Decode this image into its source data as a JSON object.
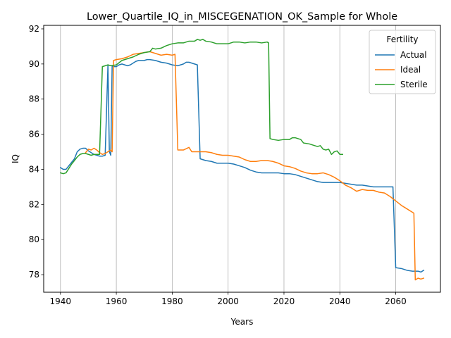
{
  "chart_data": {
    "type": "line",
    "title": "Lower_Quartile_IQ_in_MISCEGENATION_OK_Sample for Whole",
    "xlabel": "Years",
    "ylabel": "IQ",
    "xlim": [
      1934,
      2076
    ],
    "ylim": [
      77.0,
      92.2
    ],
    "xticks": [
      1940,
      1960,
      1980,
      2000,
      2020,
      2040,
      2060
    ],
    "yticks": [
      78,
      80,
      82,
      84,
      86,
      88,
      90,
      92
    ],
    "grid": "x-only",
    "legend": {
      "title": "Fertility",
      "placement": "top-right"
    },
    "series": [
      {
        "name": "Actual",
        "color": "#1f77b4",
        "points": [
          [
            1940,
            84.1
          ],
          [
            1941,
            84.0
          ],
          [
            1942,
            84.0
          ],
          [
            1943,
            84.2
          ],
          [
            1944,
            84.4
          ],
          [
            1945,
            84.6
          ],
          [
            1946,
            85.0
          ],
          [
            1947,
            85.15
          ],
          [
            1948,
            85.2
          ],
          [
            1949,
            85.2
          ],
          [
            1950,
            85.05
          ],
          [
            1951,
            84.95
          ],
          [
            1952,
            84.85
          ],
          [
            1953,
            84.8
          ],
          [
            1954,
            84.75
          ],
          [
            1955,
            84.75
          ],
          [
            1956,
            84.8
          ],
          [
            1957,
            89.95
          ],
          [
            1957.5,
            85.0
          ],
          [
            1958,
            84.8
          ],
          [
            1958.5,
            89.9
          ],
          [
            1959,
            89.85
          ],
          [
            1960,
            89.85
          ],
          [
            1961,
            89.95
          ],
          [
            1962,
            90.0
          ],
          [
            1963,
            89.95
          ],
          [
            1964,
            89.9
          ],
          [
            1965,
            89.95
          ],
          [
            1966,
            90.05
          ],
          [
            1967,
            90.15
          ],
          [
            1968,
            90.2
          ],
          [
            1970,
            90.2
          ],
          [
            1971,
            90.25
          ],
          [
            1972,
            90.25
          ],
          [
            1974,
            90.2
          ],
          [
            1976,
            90.1
          ],
          [
            1978,
            90.05
          ],
          [
            1980,
            89.95
          ],
          [
            1982,
            89.9
          ],
          [
            1984,
            90.0
          ],
          [
            1985,
            90.1
          ],
          [
            1986,
            90.1
          ],
          [
            1988,
            90.0
          ],
          [
            1989,
            89.95
          ],
          [
            1990,
            84.6
          ],
          [
            1992,
            84.5
          ],
          [
            1994,
            84.45
          ],
          [
            1996,
            84.35
          ],
          [
            1998,
            84.35
          ],
          [
            2000,
            84.35
          ],
          [
            2002,
            84.3
          ],
          [
            2004,
            84.2
          ],
          [
            2006,
            84.1
          ],
          [
            2008,
            83.95
          ],
          [
            2010,
            83.85
          ],
          [
            2012,
            83.8
          ],
          [
            2014,
            83.8
          ],
          [
            2016,
            83.8
          ],
          [
            2018,
            83.8
          ],
          [
            2020,
            83.75
          ],
          [
            2022,
            83.75
          ],
          [
            2024,
            83.7
          ],
          [
            2026,
            83.6
          ],
          [
            2028,
            83.5
          ],
          [
            2030,
            83.4
          ],
          [
            2032,
            83.3
          ],
          [
            2034,
            83.25
          ],
          [
            2036,
            83.25
          ],
          [
            2038,
            83.25
          ],
          [
            2040,
            83.25
          ],
          [
            2042,
            83.2
          ],
          [
            2044,
            83.15
          ],
          [
            2046,
            83.1
          ],
          [
            2048,
            83.1
          ],
          [
            2050,
            83.05
          ],
          [
            2052,
            83.0
          ],
          [
            2054,
            83.0
          ],
          [
            2056,
            83.0
          ],
          [
            2058,
            83.0
          ],
          [
            2059,
            83.0
          ],
          [
            2060,
            78.4
          ],
          [
            2062,
            78.35
          ],
          [
            2064,
            78.25
          ],
          [
            2066,
            78.2
          ],
          [
            2068,
            78.2
          ],
          [
            2069,
            78.15
          ],
          [
            2070,
            78.25
          ]
        ]
      },
      {
        "name": "Ideal",
        "color": "#ff7f0e",
        "points": [
          [
            1949,
            84.95
          ],
          [
            1950,
            85.15
          ],
          [
            1951,
            85.1
          ],
          [
            1952,
            85.2
          ],
          [
            1953,
            85.1
          ],
          [
            1954,
            84.95
          ],
          [
            1955,
            84.85
          ],
          [
            1956,
            84.9
          ],
          [
            1957,
            85.0
          ],
          [
            1958,
            85.1
          ],
          [
            1958.5,
            85.0
          ],
          [
            1959,
            90.2
          ],
          [
            1960,
            90.25
          ],
          [
            1962,
            90.3
          ],
          [
            1964,
            90.4
          ],
          [
            1966,
            90.55
          ],
          [
            1968,
            90.6
          ],
          [
            1970,
            90.65
          ],
          [
            1972,
            90.7
          ],
          [
            1974,
            90.6
          ],
          [
            1976,
            90.5
          ],
          [
            1978,
            90.55
          ],
          [
            1980,
            90.5
          ],
          [
            1981,
            90.55
          ],
          [
            1982,
            85.1
          ],
          [
            1984,
            85.1
          ],
          [
            1986,
            85.25
          ],
          [
            1987,
            85.0
          ],
          [
            1990,
            85.0
          ],
          [
            1992,
            85.0
          ],
          [
            1994,
            84.95
          ],
          [
            1996,
            84.85
          ],
          [
            1998,
            84.8
          ],
          [
            2000,
            84.8
          ],
          [
            2002,
            84.75
          ],
          [
            2004,
            84.7
          ],
          [
            2006,
            84.55
          ],
          [
            2008,
            84.45
          ],
          [
            2010,
            84.45
          ],
          [
            2012,
            84.5
          ],
          [
            2014,
            84.5
          ],
          [
            2016,
            84.45
          ],
          [
            2018,
            84.35
          ],
          [
            2020,
            84.2
          ],
          [
            2022,
            84.15
          ],
          [
            2024,
            84.05
          ],
          [
            2026,
            83.9
          ],
          [
            2028,
            83.8
          ],
          [
            2030,
            83.75
          ],
          [
            2032,
            83.75
          ],
          [
            2034,
            83.8
          ],
          [
            2036,
            83.7
          ],
          [
            2038,
            83.55
          ],
          [
            2040,
            83.35
          ],
          [
            2042,
            83.1
          ],
          [
            2044,
            82.95
          ],
          [
            2046,
            82.75
          ],
          [
            2048,
            82.85
          ],
          [
            2050,
            82.8
          ],
          [
            2052,
            82.8
          ],
          [
            2054,
            82.7
          ],
          [
            2056,
            82.65
          ],
          [
            2058,
            82.45
          ],
          [
            2060,
            82.2
          ],
          [
            2062,
            81.95
          ],
          [
            2064,
            81.75
          ],
          [
            2066,
            81.55
          ],
          [
            2066.5,
            81.5
          ],
          [
            2067,
            77.7
          ],
          [
            2068,
            77.8
          ],
          [
            2069,
            77.75
          ],
          [
            2070,
            77.8
          ]
        ]
      },
      {
        "name": "Sterile",
        "color": "#2ca02c",
        "points": [
          [
            1940,
            83.8
          ],
          [
            1941,
            83.75
          ],
          [
            1942,
            83.8
          ],
          [
            1943,
            84.05
          ],
          [
            1944,
            84.3
          ],
          [
            1945,
            84.5
          ],
          [
            1946,
            84.7
          ],
          [
            1947,
            84.85
          ],
          [
            1948,
            84.9
          ],
          [
            1949,
            84.9
          ],
          [
            1950,
            84.85
          ],
          [
            1951,
            84.8
          ],
          [
            1952,
            84.85
          ],
          [
            1953,
            84.85
          ],
          [
            1954,
            84.85
          ],
          [
            1955,
            89.85
          ],
          [
            1956,
            89.9
          ],
          [
            1957,
            89.95
          ],
          [
            1958,
            89.9
          ],
          [
            1960,
            89.95
          ],
          [
            1962,
            90.2
          ],
          [
            1964,
            90.3
          ],
          [
            1966,
            90.4
          ],
          [
            1968,
            90.55
          ],
          [
            1970,
            90.65
          ],
          [
            1972,
            90.7
          ],
          [
            1973,
            90.9
          ],
          [
            1974,
            90.85
          ],
          [
            1976,
            90.9
          ],
          [
            1978,
            91.05
          ],
          [
            1980,
            91.15
          ],
          [
            1982,
            91.2
          ],
          [
            1984,
            91.2
          ],
          [
            1986,
            91.3
          ],
          [
            1988,
            91.3
          ],
          [
            1989,
            91.4
          ],
          [
            1990,
            91.35
          ],
          [
            1991,
            91.4
          ],
          [
            1992,
            91.3
          ],
          [
            1994,
            91.25
          ],
          [
            1996,
            91.15
          ],
          [
            1998,
            91.15
          ],
          [
            2000,
            91.15
          ],
          [
            2002,
            91.25
          ],
          [
            2004,
            91.25
          ],
          [
            2006,
            91.2
          ],
          [
            2008,
            91.25
          ],
          [
            2010,
            91.25
          ],
          [
            2012,
            91.2
          ],
          [
            2014,
            91.25
          ],
          [
            2014.5,
            91.2
          ],
          [
            2015,
            85.75
          ],
          [
            2016,
            85.7
          ],
          [
            2018,
            85.65
          ],
          [
            2020,
            85.7
          ],
          [
            2022,
            85.7
          ],
          [
            2023,
            85.8
          ],
          [
            2024,
            85.8
          ],
          [
            2026,
            85.7
          ],
          [
            2027,
            85.5
          ],
          [
            2029,
            85.45
          ],
          [
            2030,
            85.4
          ],
          [
            2032,
            85.3
          ],
          [
            2033,
            85.35
          ],
          [
            2034,
            85.15
          ],
          [
            2035,
            85.1
          ],
          [
            2036,
            85.15
          ],
          [
            2037,
            84.85
          ],
          [
            2038,
            85.0
          ],
          [
            2039,
            85.05
          ],
          [
            2040,
            84.85
          ],
          [
            2041,
            84.85
          ]
        ]
      }
    ]
  }
}
